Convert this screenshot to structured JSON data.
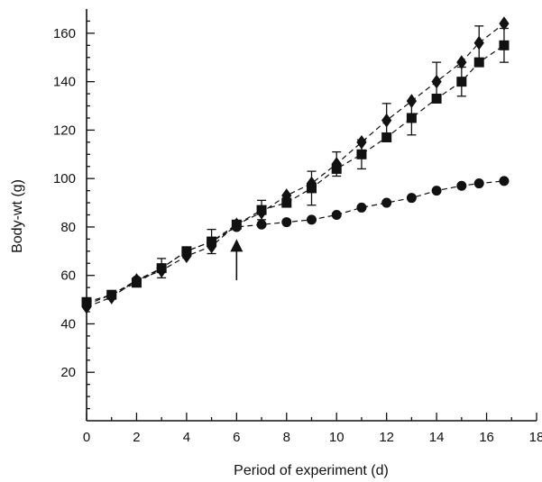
{
  "chart_data": {
    "type": "line",
    "title": "",
    "xlabel": "Period of experiment (d)",
    "ylabel": "Body-wt (g)",
    "xlim": [
      0,
      18
    ],
    "ylim": [
      0,
      170
    ],
    "xticks": [
      0,
      2,
      4,
      6,
      8,
      10,
      12,
      14,
      16,
      18
    ],
    "yticks": [
      20,
      40,
      60,
      80,
      100,
      120,
      140,
      160
    ],
    "xtick_labels": [
      "0",
      "2",
      "4",
      "6",
      "8",
      "10",
      "12",
      "14",
      "16",
      "18"
    ],
    "ytick_labels": [
      "20",
      "40",
      "60",
      "80",
      "100",
      "120",
      "140",
      "160"
    ],
    "grid": false,
    "legend": "none",
    "series": [
      {
        "marker": "diamond",
        "x": [
          0,
          1,
          2,
          3,
          4,
          5,
          6,
          7,
          8,
          9,
          10,
          11,
          12,
          13,
          14,
          15,
          15.7,
          16.7
        ],
        "y": [
          47,
          51,
          58,
          62,
          68,
          72,
          81,
          86,
          93,
          98,
          106,
          115,
          124,
          132,
          140,
          148,
          156,
          164
        ],
        "err": [
          0,
          0,
          0,
          0,
          0,
          0,
          0,
          0,
          0,
          0,
          5,
          0,
          7,
          0,
          8,
          0,
          7,
          0
        ]
      },
      {
        "marker": "square",
        "x": [
          0,
          1,
          2,
          3,
          4,
          5,
          6,
          7,
          8,
          9,
          10,
          11,
          12,
          13,
          14,
          15,
          15.7,
          16.7
        ],
        "y": [
          49,
          52,
          57,
          63,
          70,
          74,
          81,
          87,
          90,
          96,
          104,
          110,
          117,
          125,
          133,
          140,
          148,
          155
        ],
        "err": [
          0,
          0,
          0,
          4,
          0,
          5,
          0,
          4,
          0,
          7,
          0,
          6,
          0,
          7,
          0,
          6,
          0,
          7
        ]
      },
      {
        "marker": "circle",
        "x": [
          0,
          1,
          2,
          3,
          4,
          5,
          6,
          7,
          8,
          9,
          10,
          11,
          12,
          13,
          14,
          15,
          15.7,
          16.7
        ],
        "y": [
          48,
          52,
          58,
          63,
          70,
          74,
          80,
          81,
          82,
          83,
          85,
          88,
          90,
          92,
          95,
          97,
          98,
          99
        ],
        "err": [
          0,
          0,
          0,
          0,
          0,
          0,
          0,
          0,
          0,
          0,
          0,
          0,
          0,
          0,
          0,
          0,
          0,
          0
        ]
      }
    ],
    "annotations": [
      {
        "type": "arrow",
        "x": 6,
        "y_from": 58,
        "y_to": 75,
        "text": ""
      }
    ]
  }
}
